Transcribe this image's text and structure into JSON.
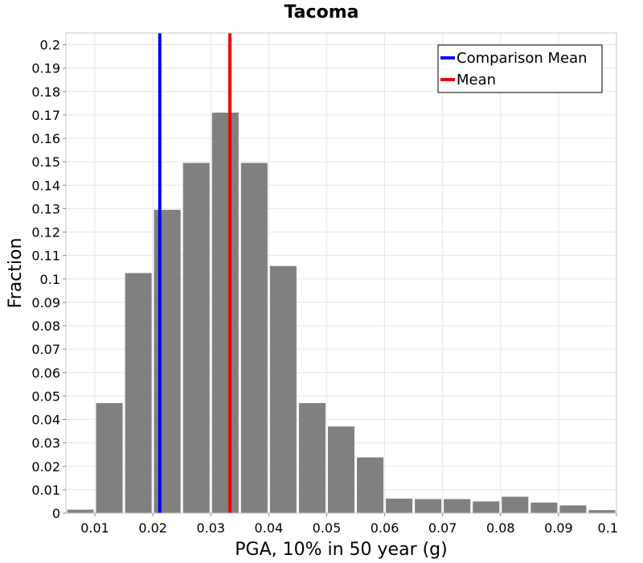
{
  "chart_data": {
    "type": "bar",
    "title": "Tacoma",
    "xlabel": "PGA, 10% in 50 year (g)",
    "ylabel": "Fraction",
    "xlim": [
      0.005,
      0.1
    ],
    "ylim": [
      0,
      0.205
    ],
    "bin_width": 0.005,
    "x_ticks": [
      "0.01",
      "0.02",
      "0.03",
      "0.04",
      "0.05",
      "0.06",
      "0.07",
      "0.08",
      "0.09",
      "0.1"
    ],
    "y_ticks": [
      "0",
      "0.01",
      "0.02",
      "0.03",
      "0.04",
      "0.05",
      "0.06",
      "0.07",
      "0.08",
      "0.09",
      "0.1",
      "0.11",
      "0.12",
      "0.13",
      "0.14",
      "0.15",
      "0.16",
      "0.17",
      "0.18",
      "0.19",
      "0.2"
    ],
    "bins": [
      {
        "x": 0.0075,
        "value": 0.0015
      },
      {
        "x": 0.0125,
        "value": 0.047
      },
      {
        "x": 0.0175,
        "value": 0.1025
      },
      {
        "x": 0.0225,
        "value": 0.1295
      },
      {
        "x": 0.0275,
        "value": 0.1495
      },
      {
        "x": 0.0325,
        "value": 0.171
      },
      {
        "x": 0.0375,
        "value": 0.1495
      },
      {
        "x": 0.0425,
        "value": 0.1055
      },
      {
        "x": 0.0475,
        "value": 0.047
      },
      {
        "x": 0.0525,
        "value": 0.037
      },
      {
        "x": 0.0575,
        "value": 0.0238
      },
      {
        "x": 0.0625,
        "value": 0.0062
      },
      {
        "x": 0.0675,
        "value": 0.006
      },
      {
        "x": 0.0725,
        "value": 0.006
      },
      {
        "x": 0.0775,
        "value": 0.005
      },
      {
        "x": 0.0825,
        "value": 0.007
      },
      {
        "x": 0.0875,
        "value": 0.0045
      },
      {
        "x": 0.0925,
        "value": 0.0033
      },
      {
        "x": 0.0975,
        "value": 0.0013
      }
    ],
    "lines": [
      {
        "name": "Comparison Mean",
        "x": 0.0212,
        "color": "#0000ee"
      },
      {
        "name": "Mean",
        "x": 0.0333,
        "color": "#ee0000"
      }
    ],
    "legend_position": "top-right",
    "grid": true,
    "bar_color": "#808080"
  }
}
